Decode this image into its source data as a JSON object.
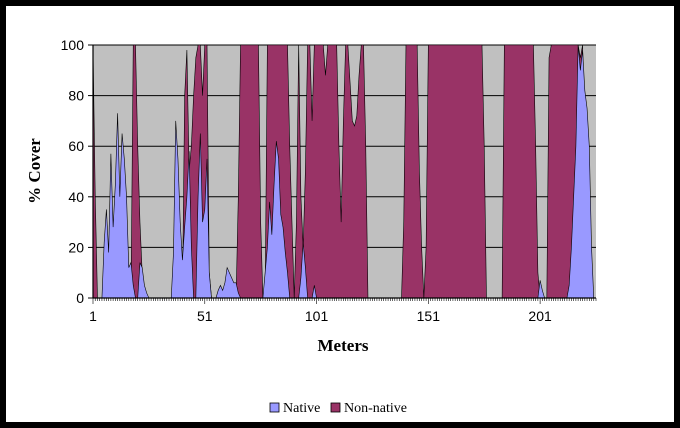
{
  "chart_data": {
    "type": "area",
    "title": "",
    "xlabel": "Meters",
    "ylabel": "% Cover",
    "xlim": [
      1,
      226
    ],
    "ylim": [
      0,
      100
    ],
    "xticks": [
      1,
      51,
      101,
      151,
      201
    ],
    "xtick_labels": [
      "1",
      "51",
      "101",
      "151",
      "201"
    ],
    "yticks": [
      0,
      20,
      40,
      60,
      80,
      100
    ],
    "ytick_labels": [
      "0",
      "20",
      "40",
      "60",
      "80",
      "100"
    ],
    "grid": true,
    "plot_background": "#c0c0c0",
    "legend_position": "bottom",
    "series": [
      {
        "name": "Native",
        "color": "#9999ff",
        "points": [
          [
            1,
            0
          ],
          [
            5,
            0
          ],
          [
            6,
            22
          ],
          [
            7,
            35
          ],
          [
            8,
            18
          ],
          [
            9,
            57
          ],
          [
            10,
            28
          ],
          [
            11,
            45
          ],
          [
            12,
            73
          ],
          [
            13,
            40
          ],
          [
            14,
            65
          ],
          [
            15,
            55
          ],
          [
            16,
            40
          ],
          [
            17,
            12
          ],
          [
            18,
            14
          ],
          [
            19,
            5
          ],
          [
            20,
            0
          ],
          [
            21,
            0
          ],
          [
            22,
            14
          ],
          [
            23,
            12
          ],
          [
            24,
            5
          ],
          [
            25,
            2
          ],
          [
            26,
            0
          ],
          [
            36,
            0
          ],
          [
            37,
            18
          ],
          [
            38,
            70
          ],
          [
            39,
            55
          ],
          [
            40,
            30
          ],
          [
            41,
            15
          ],
          [
            42,
            28
          ],
          [
            43,
            40
          ],
          [
            44,
            58
          ],
          [
            45,
            20
          ],
          [
            46,
            0
          ],
          [
            47,
            0
          ],
          [
            48,
            40
          ],
          [
            49,
            65
          ],
          [
            50,
            30
          ],
          [
            51,
            35
          ],
          [
            52,
            55
          ],
          [
            53,
            10
          ],
          [
            54,
            0
          ],
          [
            56,
            0
          ],
          [
            57,
            3
          ],
          [
            58,
            5
          ],
          [
            59,
            3
          ],
          [
            60,
            6
          ],
          [
            61,
            12
          ],
          [
            62,
            10
          ],
          [
            63,
            8
          ],
          [
            64,
            6
          ],
          [
            65,
            6
          ],
          [
            66,
            2
          ],
          [
            67,
            0
          ],
          [
            77,
            0
          ],
          [
            78,
            10
          ],
          [
            79,
            20
          ],
          [
            80,
            38
          ],
          [
            81,
            25
          ],
          [
            82,
            45
          ],
          [
            83,
            62
          ],
          [
            84,
            55
          ],
          [
            85,
            33
          ],
          [
            86,
            28
          ],
          [
            87,
            18
          ],
          [
            88,
            10
          ],
          [
            89,
            0
          ],
          [
            93,
            0
          ],
          [
            94,
            8
          ],
          [
            95,
            22
          ],
          [
            96,
            12
          ],
          [
            97,
            0
          ],
          [
            99,
            0
          ],
          [
            100,
            5
          ],
          [
            101,
            0
          ],
          [
            200,
            0
          ],
          [
            201,
            7
          ],
          [
            202,
            3
          ],
          [
            203,
            0
          ],
          [
            213,
            0
          ],
          [
            214,
            5
          ],
          [
            215,
            20
          ],
          [
            216,
            40
          ],
          [
            217,
            60
          ],
          [
            218,
            100
          ],
          [
            219,
            90
          ],
          [
            220,
            98
          ],
          [
            221,
            82
          ],
          [
            222,
            75
          ],
          [
            223,
            60
          ],
          [
            224,
            20
          ],
          [
            225,
            0
          ]
        ]
      },
      {
        "name": "Non-native",
        "color": "#993366",
        "points": [
          [
            1,
            100
          ],
          [
            2,
            40
          ],
          [
            3,
            0
          ],
          [
            18,
            0
          ],
          [
            19,
            100
          ],
          [
            20,
            100
          ],
          [
            21,
            60
          ],
          [
            22,
            30
          ],
          [
            23,
            10
          ],
          [
            24,
            0
          ],
          [
            41,
            0
          ],
          [
            42,
            80
          ],
          [
            43,
            98
          ],
          [
            44,
            50
          ],
          [
            45,
            60
          ],
          [
            46,
            80
          ],
          [
            47,
            95
          ],
          [
            48,
            100
          ],
          [
            49,
            100
          ],
          [
            50,
            80
          ],
          [
            51,
            100
          ],
          [
            52,
            100
          ],
          [
            53,
            10
          ],
          [
            54,
            0
          ],
          [
            65,
            0
          ],
          [
            66,
            40
          ],
          [
            67,
            100
          ],
          [
            75,
            100
          ],
          [
            76,
            30
          ],
          [
            77,
            0
          ],
          [
            78,
            0
          ],
          [
            79,
            100
          ],
          [
            88,
            100
          ],
          [
            89,
            60
          ],
          [
            90,
            30
          ],
          [
            91,
            0
          ],
          [
            92,
            30
          ],
          [
            93,
            100
          ],
          [
            94,
            40
          ],
          [
            95,
            20
          ],
          [
            96,
            50
          ],
          [
            97,
            100
          ],
          [
            98,
            100
          ],
          [
            99,
            70
          ],
          [
            100,
            100
          ],
          [
            101,
            100
          ],
          [
            102,
            100
          ],
          [
            103,
            100
          ],
          [
            104,
            100
          ],
          [
            105,
            88
          ],
          [
            106,
            100
          ],
          [
            110,
            100
          ],
          [
            111,
            60
          ],
          [
            112,
            30
          ],
          [
            113,
            70
          ],
          [
            114,
            100
          ],
          [
            115,
            100
          ],
          [
            116,
            85
          ],
          [
            117,
            70
          ],
          [
            118,
            68
          ],
          [
            119,
            72
          ],
          [
            120,
            88
          ],
          [
            121,
            100
          ],
          [
            122,
            100
          ],
          [
            123,
            60
          ],
          [
            124,
            0
          ],
          [
            139,
            0
          ],
          [
            140,
            30
          ],
          [
            141,
            100
          ],
          [
            146,
            100
          ],
          [
            147,
            50
          ],
          [
            148,
            20
          ],
          [
            149,
            0
          ],
          [
            150,
            20
          ],
          [
            151,
            100
          ],
          [
            175,
            100
          ],
          [
            176,
            60
          ],
          [
            177,
            0
          ],
          [
            184,
            0
          ],
          [
            185,
            100
          ],
          [
            198,
            100
          ],
          [
            199,
            60
          ],
          [
            200,
            10
          ],
          [
            201,
            0
          ],
          [
            204,
            0
          ],
          [
            205,
            95
          ],
          [
            206,
            100
          ],
          [
            218,
            100
          ],
          [
            219,
            95
          ],
          [
            220,
            100
          ],
          [
            221,
            60
          ],
          [
            222,
            20
          ],
          [
            223,
            0
          ]
        ]
      }
    ]
  }
}
